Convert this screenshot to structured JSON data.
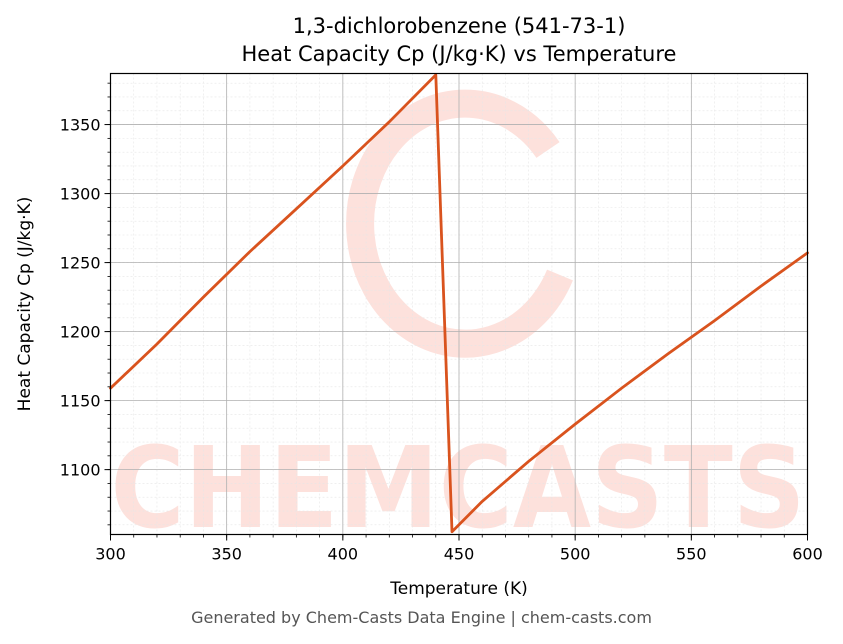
{
  "chart_data": {
    "type": "line",
    "title_line1": "1,3-dichlorobenzene (541-73-1)",
    "title_line2": "Heat Capacity Cp (J/kg·K) vs Temperature",
    "xlabel": "Temperature (K)",
    "ylabel": "Heat Capacity Cp (J/kg·K)",
    "xlim": [
      300,
      600
    ],
    "ylim": [
      1053,
      1387
    ],
    "x_ticks": [
      300,
      350,
      400,
      450,
      500,
      550,
      600
    ],
    "y_ticks": [
      1100,
      1150,
      1200,
      1250,
      1300,
      1350
    ],
    "grid": true,
    "series": [
      {
        "color": "#d9531e",
        "points": [
          [
            300,
            1159
          ],
          [
            320,
            1191
          ],
          [
            340,
            1225
          ],
          [
            360,
            1258
          ],
          [
            380,
            1289
          ],
          [
            400,
            1320
          ],
          [
            420,
            1352
          ],
          [
            440,
            1386
          ],
          [
            447,
            1055
          ],
          [
            460,
            1077
          ],
          [
            480,
            1106
          ],
          [
            500,
            1133
          ],
          [
            520,
            1159
          ],
          [
            540,
            1184
          ],
          [
            560,
            1208
          ],
          [
            580,
            1233
          ],
          [
            600,
            1257
          ]
        ]
      }
    ]
  },
  "watermark": {
    "text": "CHEMCASTS",
    "color": "#fde1dc"
  },
  "footer": "Generated by Chem-Casts Data Engine | chem-casts.com"
}
